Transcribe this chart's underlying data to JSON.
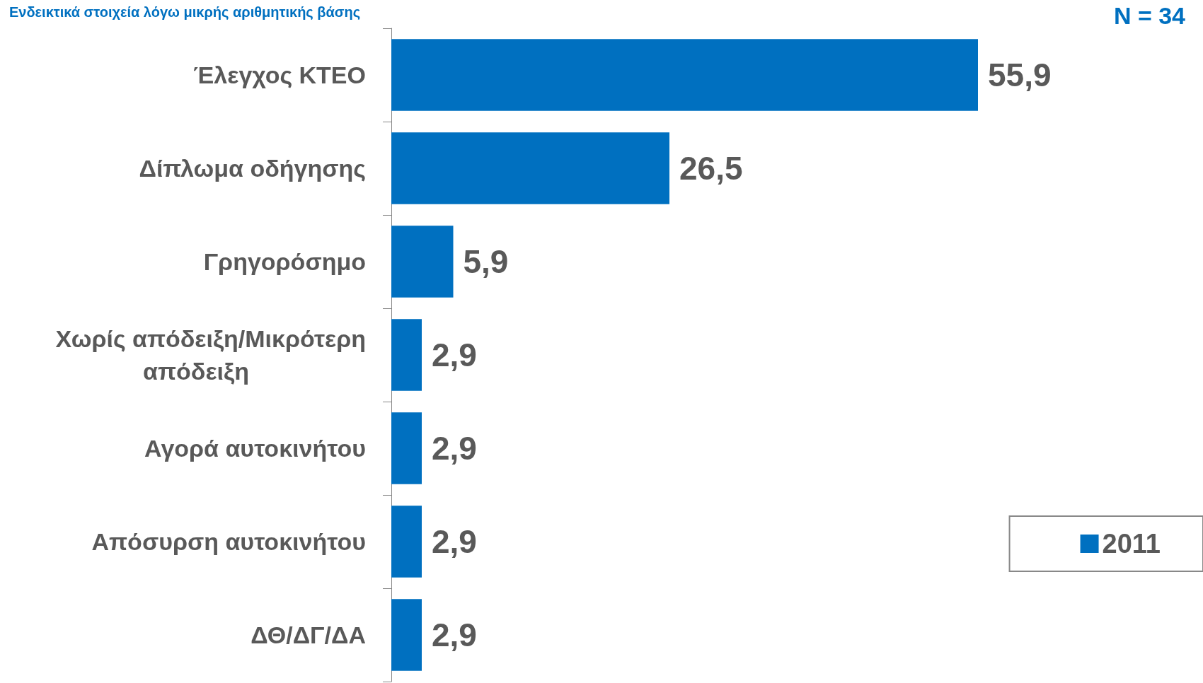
{
  "chart_data": {
    "type": "bar",
    "orientation": "horizontal",
    "subtitle": "Ενδεικτικά στοιχεία λόγω μικρής αριθμητικής βάσης",
    "annotations": [
      "N = 34"
    ],
    "categories": [
      "Έλεγχος ΚΤΕΟ",
      "Δίπλωμα οδήγησης",
      "Γρηγορόσημο",
      "Χωρίς απόδειξη/Μικρότερη απόδειξη",
      "Αγορά αυτοκινήτου",
      "Απόσυρση αυτοκινήτου",
      "ΔΘ/ΔΓ/ΔΑ"
    ],
    "series": [
      {
        "name": "2011",
        "color": "#0070c0",
        "values": [
          55.9,
          26.5,
          5.9,
          2.9,
          2.9,
          2.9,
          2.9
        ],
        "value_labels": [
          "55,9",
          "26,5",
          "5,9",
          "2,9",
          "2,9",
          "2,9",
          "2,9"
        ]
      }
    ],
    "legend": "bottom right",
    "grid": false
  }
}
